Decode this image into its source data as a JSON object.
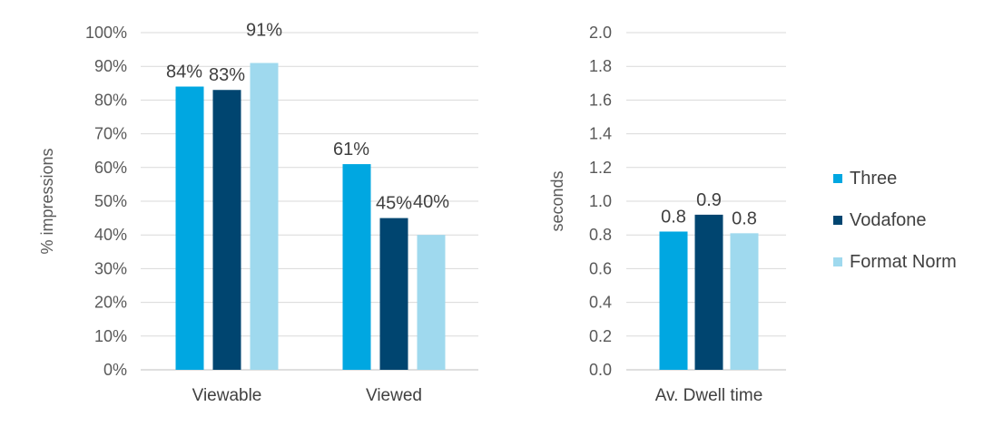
{
  "chart_data": [
    {
      "type": "bar",
      "categories": [
        "Viewable",
        "Viewed"
      ],
      "ylabel": "% impressions",
      "ylim": [
        0,
        1
      ],
      "yticks": [
        "0%",
        "10%",
        "20%",
        "30%",
        "40%",
        "50%",
        "60%",
        "70%",
        "80%",
        "90%",
        "100%"
      ],
      "grid": true,
      "series": [
        {
          "name": "Three",
          "values": [
            0.84,
            0.61
          ],
          "labels": [
            "84%",
            "61%"
          ],
          "color": "#00a7e1"
        },
        {
          "name": "Vodafone",
          "values": [
            0.83,
            0.45
          ],
          "labels": [
            "83%",
            "45%"
          ],
          "color": "#004570"
        },
        {
          "name": "Format Norm",
          "values": [
            0.91,
            0.4
          ],
          "labels": [
            "91%",
            "40%"
          ],
          "color": "#9fd9ee"
        }
      ]
    },
    {
      "type": "bar",
      "categories": [
        "Av. Dwell time"
      ],
      "ylabel": "seconds",
      "ylim": [
        0,
        2.0
      ],
      "yticks": [
        "0.0",
        "0.2",
        "0.4",
        "0.6",
        "0.8",
        "1.0",
        "1.2",
        "1.4",
        "1.6",
        "1.8",
        "2.0"
      ],
      "grid": true,
      "series": [
        {
          "name": "Three",
          "values": [
            0.82
          ],
          "labels": [
            "0.8"
          ],
          "color": "#00a7e1"
        },
        {
          "name": "Vodafone",
          "values": [
            0.92
          ],
          "labels": [
            "0.9"
          ],
          "color": "#004570"
        },
        {
          "name": "Format Norm",
          "values": [
            0.81
          ],
          "labels": [
            "0.8"
          ],
          "color": "#9fd9ee"
        }
      ]
    }
  ],
  "legend": {
    "position": "right",
    "items": [
      {
        "name": "Three",
        "color": "#00a7e1"
      },
      {
        "name": "Vodafone",
        "color": "#004570"
      },
      {
        "name": "Format Norm",
        "color": "#9fd9ee"
      }
    ]
  }
}
